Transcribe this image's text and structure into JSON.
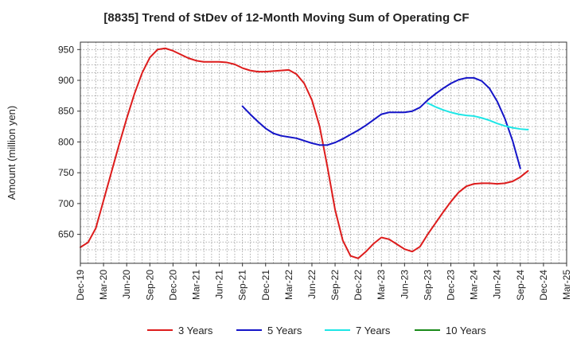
{
  "chart_data": {
    "type": "line",
    "title": "[8835]  Trend of StDev of 12-Month Moving Sum of Operating CF",
    "xlabel": "",
    "ylabel": "Amount (million yen)",
    "ylim": [
      603,
      962
    ],
    "yticks": [
      650,
      700,
      750,
      800,
      850,
      900,
      950
    ],
    "x_range": [
      "2019-12",
      "2025-03"
    ],
    "xtick_labels": [
      "Dec-19",
      "Mar-20",
      "Jun-20",
      "Sep-20",
      "Dec-20",
      "Mar-21",
      "Jun-21",
      "Sep-21",
      "Dec-21",
      "Mar-22",
      "Jun-22",
      "Sep-22",
      "Dec-22",
      "Mar-23",
      "Jun-23",
      "Sep-23",
      "Dec-23",
      "Mar-24",
      "Jun-24",
      "Sep-24",
      "Dec-24",
      "Mar-25"
    ],
    "grid": true,
    "legend_position": "bottom",
    "series": [
      {
        "name": "3 Years",
        "color": "#dd1c1c",
        "points": [
          [
            "2019-12",
            629
          ],
          [
            "2020-01",
            637
          ],
          [
            "2020-02",
            660
          ],
          [
            "2020-03",
            705
          ],
          [
            "2020-04",
            750
          ],
          [
            "2020-05",
            795
          ],
          [
            "2020-06",
            838
          ],
          [
            "2020-07",
            878
          ],
          [
            "2020-08",
            912
          ],
          [
            "2020-09",
            937
          ],
          [
            "2020-10",
            950
          ],
          [
            "2020-11",
            952
          ],
          [
            "2020-12",
            948
          ],
          [
            "2021-01",
            942
          ],
          [
            "2021-02",
            936
          ],
          [
            "2021-03",
            932
          ],
          [
            "2021-04",
            930
          ],
          [
            "2021-05",
            930
          ],
          [
            "2021-06",
            930
          ],
          [
            "2021-07",
            929
          ],
          [
            "2021-08",
            926
          ],
          [
            "2021-09",
            920
          ],
          [
            "2021-10",
            916
          ],
          [
            "2021-11",
            914
          ],
          [
            "2021-12",
            914
          ],
          [
            "2022-01",
            915
          ],
          [
            "2022-02",
            916
          ],
          [
            "2022-03",
            917
          ],
          [
            "2022-04",
            910
          ],
          [
            "2022-05",
            895
          ],
          [
            "2022-06",
            868
          ],
          [
            "2022-07",
            825
          ],
          [
            "2022-08",
            760
          ],
          [
            "2022-09",
            690
          ],
          [
            "2022-10",
            640
          ],
          [
            "2022-11",
            615
          ],
          [
            "2022-12",
            611
          ],
          [
            "2023-01",
            622
          ],
          [
            "2023-02",
            635
          ],
          [
            "2023-03",
            645
          ],
          [
            "2023-04",
            642
          ],
          [
            "2023-05",
            634
          ],
          [
            "2023-06",
            626
          ],
          [
            "2023-07",
            622
          ],
          [
            "2023-08",
            630
          ],
          [
            "2023-09",
            650
          ],
          [
            "2023-10",
            668
          ],
          [
            "2023-11",
            686
          ],
          [
            "2023-12",
            703
          ],
          [
            "2024-01",
            718
          ],
          [
            "2024-02",
            728
          ],
          [
            "2024-03",
            732
          ],
          [
            "2024-04",
            733
          ],
          [
            "2024-05",
            733
          ],
          [
            "2024-06",
            732
          ],
          [
            "2024-07",
            733
          ],
          [
            "2024-08",
            736
          ],
          [
            "2024-09",
            743
          ],
          [
            "2024-10",
            753
          ]
        ]
      },
      {
        "name": "5 Years",
        "color": "#1414c8",
        "points": [
          [
            "2021-09",
            858
          ],
          [
            "2021-10",
            845
          ],
          [
            "2021-11",
            833
          ],
          [
            "2021-12",
            822
          ],
          [
            "2022-01",
            814
          ],
          [
            "2022-02",
            810
          ],
          [
            "2022-03",
            808
          ],
          [
            "2022-04",
            806
          ],
          [
            "2022-05",
            802
          ],
          [
            "2022-06",
            798
          ],
          [
            "2022-07",
            795
          ],
          [
            "2022-08",
            795
          ],
          [
            "2022-09",
            799
          ],
          [
            "2022-10",
            805
          ],
          [
            "2022-11",
            812
          ],
          [
            "2022-12",
            819
          ],
          [
            "2023-01",
            827
          ],
          [
            "2023-02",
            836
          ],
          [
            "2023-03",
            845
          ],
          [
            "2023-04",
            848
          ],
          [
            "2023-05",
            848
          ],
          [
            "2023-06",
            848
          ],
          [
            "2023-07",
            850
          ],
          [
            "2023-08",
            856
          ],
          [
            "2023-09",
            868
          ],
          [
            "2023-10",
            878
          ],
          [
            "2023-11",
            887
          ],
          [
            "2023-12",
            895
          ],
          [
            "2024-01",
            901
          ],
          [
            "2024-02",
            904
          ],
          [
            "2024-03",
            904
          ],
          [
            "2024-04",
            899
          ],
          [
            "2024-05",
            887
          ],
          [
            "2024-06",
            866
          ],
          [
            "2024-07",
            838
          ],
          [
            "2024-08",
            802
          ],
          [
            "2024-09",
            757
          ]
        ]
      },
      {
        "name": "7 Years",
        "color": "#1ee6e6",
        "points": [
          [
            "2023-09",
            863
          ],
          [
            "2023-10",
            857
          ],
          [
            "2023-11",
            852
          ],
          [
            "2023-12",
            848
          ],
          [
            "2024-01",
            845
          ],
          [
            "2024-02",
            843
          ],
          [
            "2024-03",
            842
          ],
          [
            "2024-04",
            839
          ],
          [
            "2024-05",
            835
          ],
          [
            "2024-06",
            830
          ],
          [
            "2024-07",
            826
          ],
          [
            "2024-08",
            823
          ],
          [
            "2024-09",
            821
          ],
          [
            "2024-10",
            820
          ]
        ]
      },
      {
        "name": "10 Years",
        "color": "#1a8a1a",
        "points": []
      }
    ]
  }
}
